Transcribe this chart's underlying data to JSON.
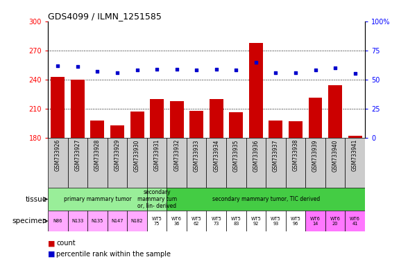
{
  "title": "GDS4099 / ILMN_1251585",
  "samples": [
    "GSM733926",
    "GSM733927",
    "GSM733928",
    "GSM733929",
    "GSM733930",
    "GSM733931",
    "GSM733932",
    "GSM733933",
    "GSM733934",
    "GSM733935",
    "GSM733936",
    "GSM733937",
    "GSM733938",
    "GSM733939",
    "GSM733940",
    "GSM733941"
  ],
  "counts": [
    243,
    240,
    198,
    193,
    207,
    220,
    218,
    208,
    220,
    206,
    278,
    198,
    197,
    221,
    234,
    182
  ],
  "percentile": [
    62,
    61,
    57,
    56,
    58,
    59,
    59,
    58,
    59,
    58,
    65,
    56,
    56,
    58,
    60,
    55
  ],
  "ylim_left": [
    180,
    300
  ],
  "ylim_right": [
    0,
    100
  ],
  "yticks_left": [
    180,
    210,
    240,
    270,
    300
  ],
  "yticks_right": [
    0,
    25,
    50,
    75,
    100
  ],
  "bar_color": "#cc0000",
  "dot_color": "#0000cc",
  "tissue_groups": [
    {
      "label": "primary mammary tumor",
      "start": 0,
      "end": 4,
      "color": "#99ee99"
    },
    {
      "label": "secondary\nmammary tum\nor, lin- derived",
      "start": 5,
      "end": 5,
      "color": "#99ee99"
    },
    {
      "label": "secondary mammary tumor, TIC derived",
      "start": 6,
      "end": 15,
      "color": "#44cc44"
    }
  ],
  "specimen_labels": [
    "N86",
    "N133",
    "N135",
    "N147",
    "N182",
    "WT5\n75",
    "WT6\n36",
    "WT5\n62",
    "WT5\n73",
    "WT5\n83",
    "WT5\n92",
    "WT5\n93",
    "WT5\n96",
    "WT6\n14",
    "WT6\n20",
    "WT6\n41"
  ],
  "specimen_colors": [
    "#ffaaff",
    "#ffaaff",
    "#ffaaff",
    "#ffaaff",
    "#ffaaff",
    "#ffffff",
    "#ffffff",
    "#ffffff",
    "#ffffff",
    "#ffffff",
    "#ffffff",
    "#ffffff",
    "#ffffff",
    "#ff77ff",
    "#ff77ff",
    "#ff77ff"
  ],
  "sample_bg_color": "#cccccc",
  "background_color": "#ffffff"
}
